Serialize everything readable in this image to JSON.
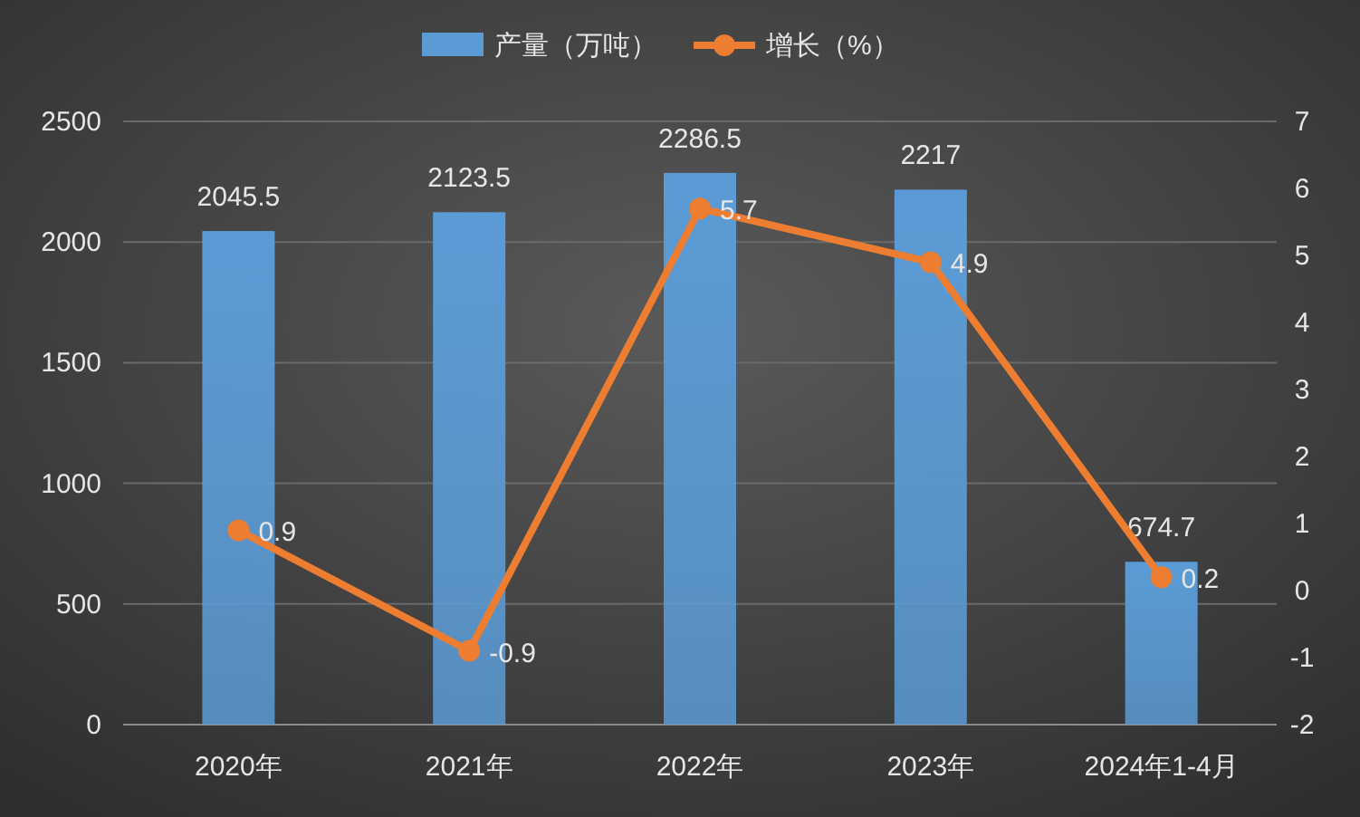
{
  "chart_data": {
    "type": "bar",
    "categories": [
      "2020年",
      "2021年",
      "2022年",
      "2023年",
      "2024年1-4月"
    ],
    "series": [
      {
        "name": "产量（万吨）",
        "color": "#5b9bd5",
        "values": [
          2045.5,
          2123.5,
          2286.5,
          2217,
          674.7
        ]
      },
      {
        "name": "增长（%）",
        "type": "line",
        "axis": "y2",
        "color": "#ed7d31",
        "values": [
          0.9,
          -0.9,
          5.7,
          4.9,
          0.2
        ]
      }
    ],
    "ylim": [
      0,
      2500
    ],
    "yticks": [
      0,
      500,
      1000,
      1500,
      2000,
      2500
    ],
    "y2lim": [
      -2,
      7
    ],
    "y2ticks": [
      -2,
      -1,
      0,
      1,
      2,
      3,
      4,
      5,
      6,
      7
    ],
    "grid": "y",
    "legend": "top",
    "marker": "circle",
    "line_style": "solid",
    "data_labels": true
  }
}
